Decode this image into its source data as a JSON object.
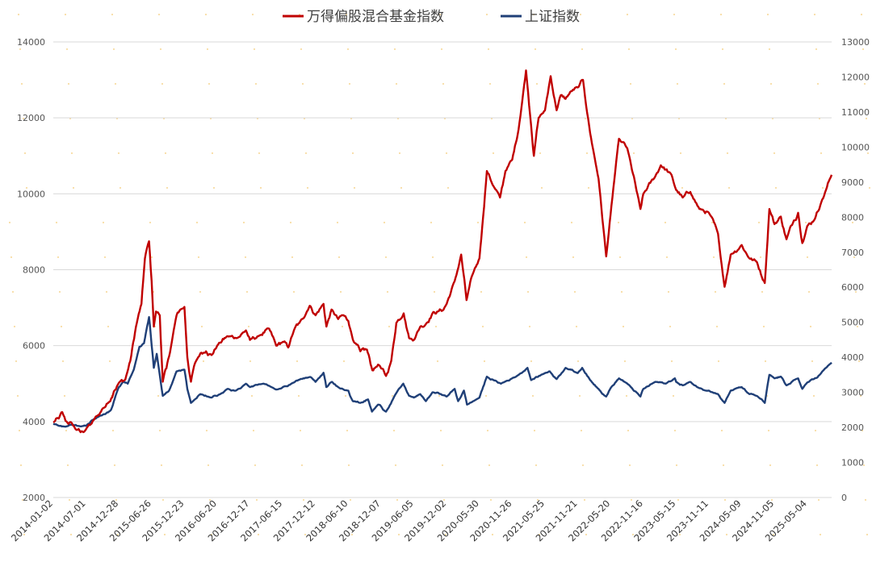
{
  "chart_data": {
    "type": "line",
    "title": "",
    "legend": {
      "placement": "top-center",
      "entries": [
        "万得偏股混合基金指数",
        "上证指数"
      ]
    },
    "grid": true,
    "left_axis": {
      "ylim": [
        2000,
        14000
      ],
      "ticks": [
        "2000",
        "4000",
        "6000",
        "8000",
        "10000",
        "12000",
        "14000"
      ]
    },
    "right_axis": {
      "ylim": [
        0,
        13000
      ],
      "ticks": [
        "0",
        "1000",
        "2000",
        "3000",
        "4000",
        "5000",
        "6000",
        "7000",
        "8000",
        "9000",
        "10000",
        "11000",
        "12000",
        "13000"
      ]
    },
    "x_tick_labels": [
      "2014-01-02",
      "2014-07-01",
      "2014-12-28",
      "2015-06-26",
      "2015-12-23",
      "2016-06-20",
      "2016-12-17",
      "2017-06-15",
      "2017-12-12",
      "2018-06-10",
      "2018-12-07",
      "2019-06-05",
      "2019-12-02",
      "2020-05-30",
      "2020-11-26",
      "2021-05-25",
      "2021-11-21",
      "2022-05-20",
      "2022-11-16",
      "2023-05-15",
      "2023-11-11",
      "2024-05-09",
      "2024-11-05",
      "2025-05-04"
    ],
    "x_end": "2025-09-15",
    "colors": {
      "fund": "#c00000",
      "sh": "#1f3f77",
      "grid": "#d9d9d9",
      "dots": "#f0c05a"
    },
    "series": [
      {
        "name": "万得偏股混合基金指数",
        "axis": "left",
        "color": "#c00000",
        "points": [
          [
            "2014-01-02",
            3980
          ],
          [
            "2014-02-01",
            4080
          ],
          [
            "2014-02-20",
            4250
          ],
          [
            "2014-03-10",
            4020
          ],
          [
            "2014-04-15",
            3950
          ],
          [
            "2014-05-10",
            3780
          ],
          [
            "2014-06-01",
            3720
          ],
          [
            "2014-07-01",
            3800
          ],
          [
            "2014-08-01",
            3950
          ],
          [
            "2014-09-01",
            4150
          ],
          [
            "2014-10-01",
            4350
          ],
          [
            "2014-11-01",
            4500
          ],
          [
            "2014-12-01",
            4800
          ],
          [
            "2014-12-28",
            5020
          ],
          [
            "2015-02-01",
            5100
          ],
          [
            "2015-03-01",
            5600
          ],
          [
            "2015-04-01",
            6500
          ],
          [
            "2015-05-01",
            7100
          ],
          [
            "2015-05-20",
            8300
          ],
          [
            "2015-06-12",
            8750
          ],
          [
            "2015-06-26",
            7700
          ],
          [
            "2015-07-08",
            6500
          ],
          [
            "2015-07-20",
            6900
          ],
          [
            "2015-08-10",
            6800
          ],
          [
            "2015-08-26",
            5050
          ],
          [
            "2015-09-15",
            5400
          ],
          [
            "2015-10-15",
            6100
          ],
          [
            "2015-11-10",
            6800
          ],
          [
            "2015-12-01",
            6950
          ],
          [
            "2015-12-23",
            7020
          ],
          [
            "2016-01-08",
            5700
          ],
          [
            "2016-01-28",
            5050
          ],
          [
            "2016-02-20",
            5550
          ],
          [
            "2016-03-20",
            5800
          ],
          [
            "2016-04-20",
            5850
          ],
          [
            "2016-05-20",
            5750
          ],
          [
            "2016-06-20",
            6000
          ],
          [
            "2016-08-15",
            6250
          ],
          [
            "2016-10-01",
            6200
          ],
          [
            "2016-11-25",
            6400
          ],
          [
            "2016-12-17",
            6150
          ],
          [
            "2017-02-01",
            6250
          ],
          [
            "2017-04-01",
            6450
          ],
          [
            "2017-05-10",
            6000
          ],
          [
            "2017-06-15",
            6100
          ],
          [
            "2017-07-15",
            5950
          ],
          [
            "2017-08-15",
            6400
          ],
          [
            "2017-09-15",
            6600
          ],
          [
            "2017-11-10",
            7050
          ],
          [
            "2017-12-12",
            6800
          ],
          [
            "2018-01-25",
            7100
          ],
          [
            "2018-02-10",
            6500
          ],
          [
            "2018-03-10",
            6950
          ],
          [
            "2018-04-15",
            6700
          ],
          [
            "2018-05-15",
            6800
          ],
          [
            "2018-06-10",
            6650
          ],
          [
            "2018-07-10",
            6100
          ],
          [
            "2018-08-15",
            5850
          ],
          [
            "2018-09-20",
            5900
          ],
          [
            "2018-10-20",
            5350
          ],
          [
            "2018-11-20",
            5500
          ],
          [
            "2018-12-07",
            5400
          ],
          [
            "2019-01-03",
            5200
          ],
          [
            "2019-02-01",
            5600
          ],
          [
            "2019-03-01",
            6600
          ],
          [
            "2019-04-10",
            6850
          ],
          [
            "2019-05-10",
            6200
          ],
          [
            "2019-06-05",
            6150
          ],
          [
            "2019-07-10",
            6500
          ],
          [
            "2019-08-15",
            6600
          ],
          [
            "2019-09-15",
            6850
          ],
          [
            "2019-10-15",
            6900
          ],
          [
            "2019-11-15",
            6950
          ],
          [
            "2019-12-02",
            7100
          ],
          [
            "2020-01-15",
            7700
          ],
          [
            "2020-02-20",
            8400
          ],
          [
            "2020-03-20",
            7200
          ],
          [
            "2020-04-20",
            7850
          ],
          [
            "2020-05-30",
            8300
          ],
          [
            "2020-07-10",
            10600
          ],
          [
            "2020-08-15",
            10200
          ],
          [
            "2020-09-20",
            9900
          ],
          [
            "2020-10-20",
            10600
          ],
          [
            "2020-11-26",
            10900
          ],
          [
            "2020-12-31",
            11700
          ],
          [
            "2021-02-10",
            13250
          ],
          [
            "2021-03-10",
            11800
          ],
          [
            "2021-03-25",
            11000
          ],
          [
            "2021-04-20",
            12000
          ],
          [
            "2021-05-25",
            12200
          ],
          [
            "2021-06-25",
            13100
          ],
          [
            "2021-07-28",
            12200
          ],
          [
            "2021-08-20",
            12600
          ],
          [
            "2021-09-15",
            12500
          ],
          [
            "2021-10-15",
            12700
          ],
          [
            "2021-11-21",
            12800
          ],
          [
            "2021-12-20",
            13000
          ],
          [
            "2022-01-28",
            11600
          ],
          [
            "2022-03-15",
            10400
          ],
          [
            "2022-04-26",
            8350
          ],
          [
            "2022-05-20",
            9450
          ],
          [
            "2022-07-05",
            11450
          ],
          [
            "2022-08-20",
            11200
          ],
          [
            "2022-10-31",
            9600
          ],
          [
            "2022-11-16",
            10000
          ],
          [
            "2023-01-20",
            10450
          ],
          [
            "2023-02-20",
            10750
          ],
          [
            "2023-04-20",
            10500
          ],
          [
            "2023-05-15",
            10100
          ],
          [
            "2023-06-20",
            9900
          ],
          [
            "2023-08-01",
            10050
          ],
          [
            "2023-09-20",
            9600
          ],
          [
            "2023-11-11",
            9500
          ],
          [
            "2023-12-31",
            8950
          ],
          [
            "2024-02-05",
            7550
          ],
          [
            "2024-03-10",
            8400
          ],
          [
            "2024-05-09",
            8650
          ],
          [
            "2024-06-20",
            8300
          ],
          [
            "2024-08-01",
            8200
          ],
          [
            "2024-09-13",
            7650
          ],
          [
            "2024-10-08",
            9600
          ],
          [
            "2024-11-05",
            9200
          ],
          [
            "2024-12-10",
            9400
          ],
          [
            "2025-01-10",
            8800
          ],
          [
            "2025-02-20",
            9300
          ],
          [
            "2025-03-15",
            9500
          ],
          [
            "2025-04-07",
            8700
          ],
          [
            "2025-05-04",
            9150
          ],
          [
            "2025-06-10",
            9300
          ],
          [
            "2025-07-15",
            9700
          ],
          [
            "2025-08-15",
            10100
          ],
          [
            "2025-09-15",
            10500
          ]
        ]
      },
      {
        "name": "上证指数",
        "axis": "right",
        "color": "#1f3f77",
        "points": [
          [
            "2014-01-02",
            2100
          ],
          [
            "2014-03-10",
            2020
          ],
          [
            "2014-04-15",
            2080
          ],
          [
            "2014-06-01",
            2030
          ],
          [
            "2014-07-01",
            2050
          ],
          [
            "2014-08-01",
            2200
          ],
          [
            "2014-09-15",
            2330
          ],
          [
            "2014-10-15",
            2380
          ],
          [
            "2014-11-15",
            2500
          ],
          [
            "2014-12-10",
            2900
          ],
          [
            "2014-12-28",
            3150
          ],
          [
            "2015-01-20",
            3300
          ],
          [
            "2015-02-15",
            3250
          ],
          [
            "2015-03-20",
            3650
          ],
          [
            "2015-04-20",
            4300
          ],
          [
            "2015-05-15",
            4400
          ],
          [
            "2015-06-12",
            5150
          ],
          [
            "2015-06-26",
            4350
          ],
          [
            "2015-07-08",
            3700
          ],
          [
            "2015-07-24",
            4100
          ],
          [
            "2015-08-26",
            2900
          ],
          [
            "2015-09-30",
            3050
          ],
          [
            "2015-11-10",
            3600
          ],
          [
            "2015-12-23",
            3650
          ],
          [
            "2016-01-08",
            3100
          ],
          [
            "2016-01-28",
            2700
          ],
          [
            "2016-03-20",
            2950
          ],
          [
            "2016-05-20",
            2850
          ],
          [
            "2016-06-20",
            2900
          ],
          [
            "2016-08-15",
            3100
          ],
          [
            "2016-10-01",
            3050
          ],
          [
            "2016-11-25",
            3250
          ],
          [
            "2016-12-17",
            3150
          ],
          [
            "2017-03-01",
            3250
          ],
          [
            "2017-05-10",
            3080
          ],
          [
            "2017-06-15",
            3150
          ],
          [
            "2017-08-15",
            3280
          ],
          [
            "2017-09-20",
            3380
          ],
          [
            "2017-11-13",
            3440
          ],
          [
            "2017-12-12",
            3300
          ],
          [
            "2018-01-25",
            3560
          ],
          [
            "2018-02-09",
            3150
          ],
          [
            "2018-03-12",
            3300
          ],
          [
            "2018-04-15",
            3150
          ],
          [
            "2018-06-10",
            3050
          ],
          [
            "2018-07-05",
            2750
          ],
          [
            "2018-08-15",
            2700
          ],
          [
            "2018-09-26",
            2800
          ],
          [
            "2018-10-18",
            2450
          ],
          [
            "2018-11-20",
            2650
          ],
          [
            "2018-12-07",
            2600
          ],
          [
            "2019-01-03",
            2450
          ],
          [
            "2019-02-25",
            2950
          ],
          [
            "2019-04-08",
            3250
          ],
          [
            "2019-05-10",
            2900
          ],
          [
            "2019-06-05",
            2850
          ],
          [
            "2019-07-10",
            2950
          ],
          [
            "2019-08-10",
            2750
          ],
          [
            "2019-09-15",
            3000
          ],
          [
            "2019-11-01",
            2950
          ],
          [
            "2019-12-02",
            2880
          ],
          [
            "2020-01-15",
            3100
          ],
          [
            "2020-02-03",
            2750
          ],
          [
            "2020-03-06",
            3050
          ],
          [
            "2020-03-23",
            2650
          ],
          [
            "2020-05-30",
            2850
          ],
          [
            "2020-07-10",
            3450
          ],
          [
            "2020-08-15",
            3350
          ],
          [
            "2020-09-25",
            3250
          ],
          [
            "2020-11-26",
            3400
          ],
          [
            "2020-12-31",
            3500
          ],
          [
            "2021-02-18",
            3700
          ],
          [
            "2021-03-10",
            3350
          ],
          [
            "2021-05-25",
            3550
          ],
          [
            "2021-06-20",
            3600
          ],
          [
            "2021-07-28",
            3380
          ],
          [
            "2021-09-15",
            3700
          ],
          [
            "2021-11-21",
            3550
          ],
          [
            "2021-12-15",
            3700
          ],
          [
            "2022-01-28",
            3350
          ],
          [
            "2022-03-15",
            3100
          ],
          [
            "2022-04-26",
            2880
          ],
          [
            "2022-05-20",
            3120
          ],
          [
            "2022-07-05",
            3400
          ],
          [
            "2022-08-20",
            3250
          ],
          [
            "2022-10-31",
            2880
          ],
          [
            "2022-11-16",
            3100
          ],
          [
            "2023-01-20",
            3300
          ],
          [
            "2023-03-20",
            3250
          ],
          [
            "2023-05-08",
            3400
          ],
          [
            "2023-05-15",
            3300
          ],
          [
            "2023-06-20",
            3200
          ],
          [
            "2023-07-31",
            3300
          ],
          [
            "2023-09-20",
            3120
          ],
          [
            "2023-11-11",
            3050
          ],
          [
            "2023-12-31",
            2950
          ],
          [
            "2024-02-05",
            2700
          ],
          [
            "2024-03-10",
            3050
          ],
          [
            "2024-05-09",
            3150
          ],
          [
            "2024-06-20",
            2950
          ],
          [
            "2024-08-01",
            2900
          ],
          [
            "2024-09-13",
            2700
          ],
          [
            "2024-10-08",
            3500
          ],
          [
            "2024-11-05",
            3400
          ],
          [
            "2024-12-10",
            3450
          ],
          [
            "2025-01-10",
            3200
          ],
          [
            "2025-03-15",
            3400
          ],
          [
            "2025-04-07",
            3100
          ],
          [
            "2025-05-04",
            3280
          ],
          [
            "2025-06-10",
            3380
          ],
          [
            "2025-07-15",
            3520
          ],
          [
            "2025-08-15",
            3700
          ],
          [
            "2025-09-15",
            3850
          ]
        ]
      }
    ]
  }
}
